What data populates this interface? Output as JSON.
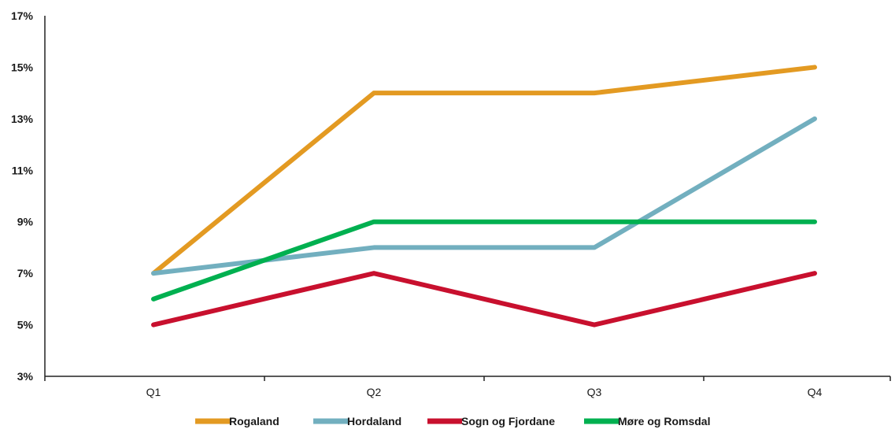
{
  "chart_data": {
    "type": "line",
    "categories": [
      "Q1",
      "Q2",
      "Q3",
      "Q4"
    ],
    "ylim": [
      3,
      17
    ],
    "yticks": [
      3,
      5,
      7,
      9,
      11,
      13,
      15,
      17
    ],
    "ytick_suffix": "%",
    "grid": false,
    "legend_position": "bottom",
    "series": [
      {
        "name": "Rogaland",
        "color": "#E39A22",
        "values": [
          7,
          14,
          14,
          15
        ]
      },
      {
        "name": "Hordaland",
        "color": "#72AFBF",
        "values": [
          7,
          8,
          8,
          13
        ]
      },
      {
        "name": "Sogn og Fjordane",
        "color": "#C8102E",
        "values": [
          5,
          7,
          5,
          7
        ]
      },
      {
        "name": "Møre og Romsdal",
        "color": "#00B050",
        "values": [
          6,
          9,
          9,
          9
        ]
      }
    ]
  }
}
